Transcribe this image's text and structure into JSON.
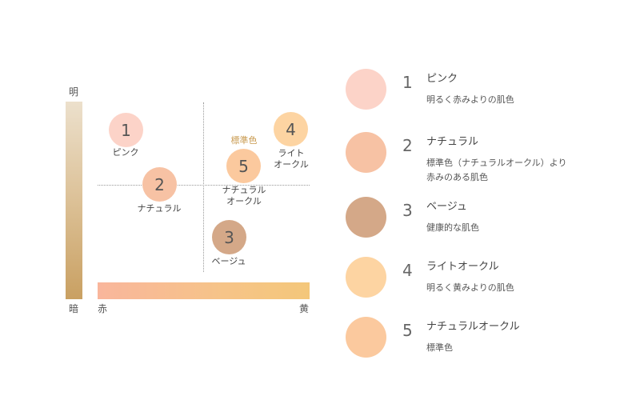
{
  "axes": {
    "top_label": "明",
    "bottom_label": "暗",
    "left_label": "赤",
    "right_label": "黄"
  },
  "standard_label": "標準色",
  "points": [
    {
      "number": "1",
      "label": "ピンク",
      "color": "#fcd3c8"
    },
    {
      "number": "2",
      "label": "ナチュラル",
      "color": "#f7c2a4"
    },
    {
      "number": "3",
      "label": "ベージュ",
      "color": "#d4a888"
    },
    {
      "number": "4",
      "label": "ライト\nオークル",
      "color": "#fdd4a2"
    },
    {
      "number": "5",
      "label": "ナチュラル\nオークル",
      "color": "#fbc99e"
    }
  ],
  "legend": [
    {
      "number": "1",
      "name": "ピンク",
      "desc": "明るく赤みよりの肌色",
      "color": "#fcd3c8"
    },
    {
      "number": "2",
      "name": "ナチュラル",
      "desc": "標準色（ナチュラルオークル）より\n赤みのある肌色",
      "color": "#f7c2a4"
    },
    {
      "number": "3",
      "name": "ベージュ",
      "desc": "健康的な肌色",
      "color": "#d4a888"
    },
    {
      "number": "4",
      "name": "ライトオークル",
      "desc": "明るく黄みよりの肌色",
      "color": "#fdd4a2"
    },
    {
      "number": "5",
      "name": "ナチュラルオークル",
      "desc": "標準色",
      "color": "#fbc99e"
    }
  ]
}
